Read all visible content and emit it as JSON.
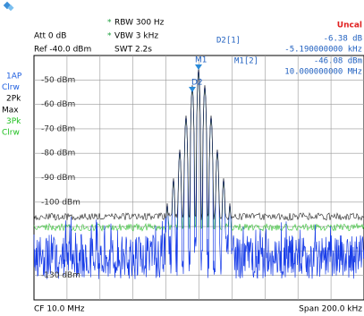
{
  "header": {
    "att": "Att  0 dB",
    "ref": "Ref -40.0 dBm",
    "rbw": "RBW 300 Hz",
    "vbw": "VBW 3 kHz",
    "swt": "SWT 2.2s",
    "uncal": "Uncal"
  },
  "markers": {
    "d2_label": "D2[1]",
    "d2_value": "-6.38 dB",
    "d2_freq": "-5.190000000 kHz",
    "m1_label": "M1[2]",
    "m1_value": "-46.08 dBm",
    "m1_freq": "10.000000000 MHz",
    "m1_tag": "M1",
    "d2_tag": "D2"
  },
  "traces": [
    "1AP",
    "Clrw",
    "2Pk",
    "Max",
    "3Pk",
    "Clrw"
  ],
  "levels": [
    "-50 dBm",
    "-60 dBm",
    "-70 dBm",
    "-80 dBm",
    "-90 dBm",
    "-100 dBm",
    "-130 dBm"
  ],
  "footer": {
    "cf": "CF 10.0 MHz",
    "span": "Span 200.0 kHz"
  }
}
